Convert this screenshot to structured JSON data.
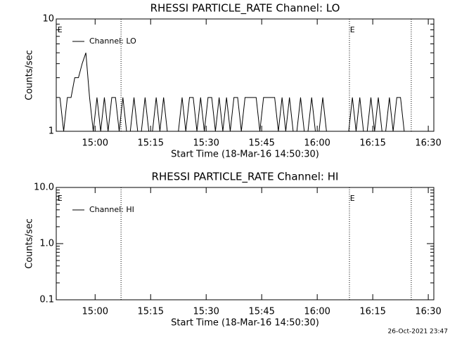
{
  "chart_data": [
    {
      "type": "line",
      "title": "RHESSI PARTICLE_RATE Channel: LO",
      "xlabel": "Start Time (18-Mar-16 14:50:30)",
      "ylabel": "Counts/sec",
      "log_y": true,
      "ylim": [
        1,
        10
      ],
      "yticks": [
        1,
        10
      ],
      "xlim": [
        -1,
        101
      ],
      "xticks": [
        {
          "value": 9.5,
          "label": "15:00"
        },
        {
          "value": 24.5,
          "label": "15:15"
        },
        {
          "value": 39.5,
          "label": "15:30"
        },
        {
          "value": 54.5,
          "label": "15:45"
        },
        {
          "value": 69.5,
          "label": "16:00"
        },
        {
          "value": 84.5,
          "label": "16:15"
        },
        {
          "value": 99.5,
          "label": "16:30"
        }
      ],
      "vlines": [
        16.5,
        78.2,
        94.9
      ],
      "markers": [
        {
          "x": 0,
          "label": "E"
        },
        {
          "x": 79,
          "label": "E"
        }
      ],
      "series": [
        {
          "name": "Channel: LO",
          "color": "#000000",
          "x": [
            0,
            1,
            2,
            3,
            4,
            5,
            6,
            7,
            8,
            9,
            10,
            11,
            12,
            13,
            14,
            15,
            16,
            17,
            18,
            19,
            20,
            21,
            22,
            23,
            24,
            25,
            26,
            27,
            28,
            29,
            30,
            31,
            32,
            33,
            34,
            35,
            36,
            37,
            38,
            39,
            40,
            41,
            42,
            43,
            44,
            45,
            46,
            47,
            48,
            49,
            50,
            51,
            52,
            53,
            54,
            55,
            56,
            57,
            58,
            59,
            60,
            61,
            62,
            63,
            64,
            65,
            66,
            67,
            68,
            69,
            70,
            71,
            72,
            73,
            74,
            75,
            76,
            77,
            78,
            79,
            80,
            81,
            82,
            83,
            84,
            85,
            86,
            87,
            88,
            89,
            90,
            91,
            92,
            93,
            94
          ],
          "values": [
            2,
            1,
            2,
            2,
            3,
            3,
            4,
            5,
            2,
            1,
            2,
            1,
            2,
            1,
            2,
            2,
            1,
            2,
            1,
            1,
            2,
            1,
            1,
            2,
            1,
            1,
            2,
            1,
            2,
            1,
            1,
            1,
            1,
            2,
            1,
            2,
            2,
            1,
            2,
            1,
            2,
            2,
            1,
            2,
            1,
            2,
            1,
            2,
            2,
            1,
            2,
            2,
            2,
            2,
            1,
            2,
            2,
            2,
            2,
            1,
            2,
            1,
            2,
            1,
            1,
            2,
            1,
            1,
            2,
            1,
            1,
            2,
            1,
            1,
            1,
            1,
            1,
            1,
            1,
            2,
            1,
            2,
            1,
            1,
            2,
            1,
            2,
            1,
            1,
            2,
            1,
            2,
            2,
            1,
            1
          ]
        }
      ]
    },
    {
      "type": "line",
      "title": "RHESSI PARTICLE_RATE Channel: HI",
      "xlabel": "Start Time (18-Mar-16 14:50:30)",
      "ylabel": "Counts/sec",
      "log_y": true,
      "ylim": [
        0.1,
        10
      ],
      "yticks": [
        {
          "value": 0.1,
          "label": "0.1"
        },
        {
          "value": 1,
          "label": "1.0"
        },
        {
          "value": 10,
          "label": "10.0"
        }
      ],
      "xlim": [
        -1,
        101
      ],
      "xticks": [
        {
          "value": 9.5,
          "label": "15:00"
        },
        {
          "value": 24.5,
          "label": "15:15"
        },
        {
          "value": 39.5,
          "label": "15:30"
        },
        {
          "value": 54.5,
          "label": "15:45"
        },
        {
          "value": 69.5,
          "label": "16:00"
        },
        {
          "value": 84.5,
          "label": "16:15"
        },
        {
          "value": 99.5,
          "label": "16:30"
        }
      ],
      "vlines": [
        16.5,
        78.2,
        94.9
      ],
      "markers": [
        {
          "x": 0,
          "label": "E"
        },
        {
          "x": 79,
          "label": "E"
        }
      ],
      "series": [
        {
          "name": "Channel: HI",
          "color": "#000000",
          "x": [],
          "values": []
        }
      ]
    }
  ],
  "footer": "26-Oct-2021 23:47"
}
